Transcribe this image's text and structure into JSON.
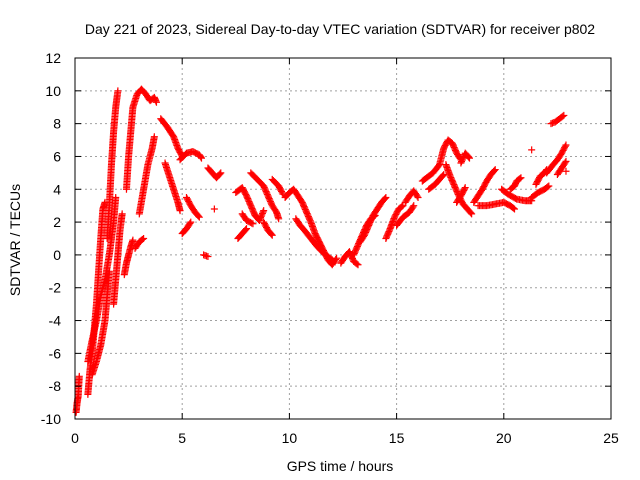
{
  "chart_data": {
    "type": "scatter",
    "title": "Day 221 of 2023, Sidereal Day-to-day VTEC variation (SDTVAR) for receiver p802",
    "xlabel": "GPS time / hours",
    "ylabel": "SDTVAR / TECUs",
    "xlim": [
      0,
      25
    ],
    "ylim": [
      -10,
      12
    ],
    "xticks": [
      0,
      5,
      10,
      15,
      20,
      25
    ],
    "yticks": [
      -10,
      -8,
      -6,
      -4,
      -2,
      0,
      2,
      4,
      6,
      8,
      10,
      12
    ],
    "xtick_labels": [
      "0",
      "5",
      "10",
      "15",
      "20",
      "25"
    ],
    "ytick_labels": [
      "-10",
      "-8",
      "-6",
      "-4",
      "-2",
      "0",
      "2",
      "4",
      "6",
      "8",
      "10",
      "12"
    ],
    "grid": true,
    "marker": "+",
    "color": "#ff0000",
    "series": [
      {
        "name": "SDTVAR",
        "tracks": [
          [
            [
              0.05,
              -9.6
            ],
            [
              0.1,
              -9.0
            ],
            [
              0.15,
              -8.6
            ],
            [
              0.2,
              -7.4
            ]
          ],
          [
            [
              0.6,
              -8.5
            ],
            [
              0.7,
              -7.0
            ],
            [
              0.8,
              -6.0
            ],
            [
              0.9,
              -4.5
            ],
            [
              1.0,
              -3.0
            ],
            [
              1.1,
              -1.0
            ],
            [
              1.2,
              1.0
            ],
            [
              1.3,
              2.8
            ],
            [
              1.4,
              3.2
            ]
          ],
          [
            [
              0.6,
              -6.5
            ],
            [
              0.8,
              -5.2
            ],
            [
              1.0,
              -4.0
            ],
            [
              1.2,
              -2.5
            ],
            [
              1.4,
              -1.5
            ],
            [
              1.6,
              0.0
            ],
            [
              1.8,
              2.0
            ],
            [
              1.9,
              3.5
            ]
          ],
          [
            [
              0.8,
              -7.3
            ],
            [
              1.0,
              -6.5
            ],
            [
              1.2,
              -5.5
            ],
            [
              1.4,
              -4.0
            ],
            [
              1.5,
              -2.5
            ],
            [
              1.6,
              -1.0
            ]
          ],
          [
            [
              1.5,
              1.0
            ],
            [
              1.6,
              3.0
            ],
            [
              1.7,
              5.5
            ],
            [
              1.8,
              7.5
            ],
            [
              1.9,
              9.0
            ],
            [
              2.0,
              10.0
            ]
          ],
          [
            [
              1.8,
              -3.0
            ],
            [
              1.9,
              -1.5
            ],
            [
              2.0,
              0.0
            ],
            [
              2.1,
              1.5
            ],
            [
              2.2,
              2.5
            ]
          ],
          [
            [
              2.3,
              -1.2
            ],
            [
              2.4,
              -0.5
            ],
            [
              2.5,
              0.0
            ],
            [
              2.6,
              0.5
            ],
            [
              2.7,
              0.9
            ]
          ],
          [
            [
              2.4,
              4.0
            ],
            [
              2.5,
              6.0
            ],
            [
              2.6,
              7.5
            ],
            [
              2.7,
              9.0
            ],
            [
              2.9,
              9.8
            ],
            [
              3.1,
              10.1
            ],
            [
              3.3,
              9.8
            ],
            [
              3.5,
              9.4
            ],
            [
              3.7,
              9.6
            ],
            [
              3.8,
              9.3
            ]
          ],
          [
            [
              2.8,
              0.4
            ],
            [
              3.0,
              0.8
            ],
            [
              3.2,
              1.0
            ]
          ],
          [
            [
              3.0,
              2.5
            ],
            [
              3.2,
              4.0
            ],
            [
              3.4,
              5.5
            ],
            [
              3.6,
              6.5
            ],
            [
              3.7,
              7.2
            ]
          ],
          [
            [
              4.0,
              8.3
            ],
            [
              4.3,
              7.8
            ],
            [
              4.6,
              7.2
            ],
            [
              4.8,
              6.5
            ],
            [
              5.0,
              6.0
            ]
          ],
          [
            [
              4.2,
              5.6
            ],
            [
              4.4,
              4.8
            ],
            [
              4.6,
              4.0
            ],
            [
              4.8,
              3.2
            ],
            [
              4.9,
              2.7
            ]
          ],
          [
            [
              4.9,
              5.8
            ],
            [
              5.2,
              6.2
            ],
            [
              5.5,
              6.3
            ],
            [
              5.8,
              6.1
            ],
            [
              5.9,
              5.9
            ]
          ],
          [
            [
              5.2,
              3.5
            ],
            [
              5.4,
              3.0
            ],
            [
              5.6,
              2.6
            ],
            [
              5.8,
              2.3
            ]
          ],
          [
            [
              5.0,
              1.3
            ],
            [
              5.2,
              1.6
            ],
            [
              5.4,
              2.0
            ]
          ],
          [
            [
              6.0,
              0.0
            ],
            [
              6.2,
              -0.1
            ]
          ],
          [
            [
              6.5,
              2.8
            ]
          ],
          [
            [
              6.2,
              5.3
            ],
            [
              6.4,
              5.0
            ],
            [
              6.6,
              4.7
            ],
            [
              6.8,
              5.0
            ]
          ],
          [
            [
              7.5,
              3.8
            ],
            [
              7.8,
              4.1
            ],
            [
              8.0,
              3.6
            ],
            [
              8.2,
              3.0
            ],
            [
              8.4,
              2.4
            ],
            [
              8.6,
              2.1
            ],
            [
              8.8,
              2.7
            ]
          ],
          [
            [
              8.2,
              5.0
            ],
            [
              8.5,
              4.6
            ],
            [
              8.8,
              4.2
            ],
            [
              9.0,
              3.6
            ],
            [
              9.2,
              3.0
            ],
            [
              9.4,
              2.6
            ],
            [
              9.5,
              2.2
            ]
          ],
          [
            [
              8.8,
              2.0
            ],
            [
              9.0,
              1.5
            ],
            [
              9.2,
              1.2
            ]
          ],
          [
            [
              7.8,
              2.5
            ],
            [
              8.0,
              2.1
            ],
            [
              8.3,
              1.9
            ]
          ],
          [
            [
              7.6,
              1.0
            ],
            [
              7.8,
              1.3
            ],
            [
              8.0,
              1.6
            ]
          ],
          [
            [
              9.2,
              4.6
            ],
            [
              9.5,
              4.2
            ],
            [
              9.7,
              3.7
            ]
          ],
          [
            [
              9.8,
              3.5
            ],
            [
              10.0,
              3.8
            ],
            [
              10.2,
              4.0
            ],
            [
              10.4,
              3.6
            ],
            [
              10.6,
              3.2
            ],
            [
              10.8,
              2.6
            ],
            [
              11.0,
              2.0
            ],
            [
              11.2,
              1.3
            ],
            [
              11.5,
              0.5
            ],
            [
              11.8,
              -0.3
            ],
            [
              12.0,
              -0.6
            ],
            [
              12.2,
              -0.2
            ]
          ],
          [
            [
              10.3,
              2.2
            ],
            [
              10.5,
              1.8
            ],
            [
              10.7,
              1.5
            ],
            [
              11.0,
              1.0
            ],
            [
              11.3,
              0.5
            ],
            [
              11.6,
              0.1
            ],
            [
              12.0,
              -0.3
            ]
          ],
          [
            [
              12.4,
              -0.5
            ],
            [
              12.6,
              -0.1
            ],
            [
              12.8,
              0.2
            ],
            [
              13.0,
              -0.4
            ],
            [
              13.2,
              -0.6
            ]
          ],
          [
            [
              13.3,
              0.8
            ],
            [
              13.5,
              1.2
            ],
            [
              13.7,
              1.8
            ],
            [
              13.9,
              2.4
            ],
            [
              14.1,
              2.8
            ],
            [
              14.3,
              3.2
            ],
            [
              14.5,
              3.5
            ]
          ],
          [
            [
              13.0,
              0.0
            ],
            [
              13.2,
              0.6
            ],
            [
              13.4,
              1.2
            ],
            [
              13.6,
              1.8
            ],
            [
              13.8,
              2.2
            ],
            [
              14.0,
              2.4
            ]
          ],
          [
            [
              14.5,
              1.0
            ],
            [
              14.7,
              1.6
            ],
            [
              14.9,
              2.3
            ],
            [
              15.1,
              2.8
            ],
            [
              15.3,
              3.0
            ]
          ],
          [
            [
              15.0,
              1.8
            ],
            [
              15.3,
              2.3
            ],
            [
              15.6,
              2.6
            ],
            [
              15.8,
              3.0
            ]
          ],
          [
            [
              15.4,
              3.2
            ],
            [
              15.6,
              3.6
            ],
            [
              15.8,
              3.9
            ],
            [
              16.0,
              3.5
            ]
          ],
          [
            [
              16.2,
              4.5
            ],
            [
              16.5,
              4.8
            ],
            [
              16.7,
              5.0
            ],
            [
              17.0,
              5.5
            ],
            [
              17.2,
              6.5
            ],
            [
              17.4,
              7.0
            ],
            [
              17.6,
              6.8
            ],
            [
              17.8,
              6.2
            ],
            [
              18.0,
              5.8
            ]
          ],
          [
            [
              16.5,
              4.0
            ],
            [
              16.8,
              4.3
            ],
            [
              17.0,
              4.6
            ],
            [
              17.2,
              4.9
            ]
          ],
          [
            [
              17.3,
              5.5
            ],
            [
              17.5,
              4.8
            ],
            [
              17.7,
              4.2
            ],
            [
              17.9,
              3.6
            ],
            [
              18.1,
              3.1
            ],
            [
              18.3,
              2.8
            ],
            [
              18.5,
              2.5
            ]
          ],
          [
            [
              18.0,
              5.6
            ],
            [
              18.2,
              6.2
            ],
            [
              18.4,
              5.9
            ]
          ],
          [
            [
              17.8,
              3.2
            ],
            [
              18.0,
              3.6
            ],
            [
              18.2,
              4.1
            ]
          ],
          [
            [
              18.6,
              3.2
            ],
            [
              18.8,
              3.6
            ],
            [
              19.0,
              4.0
            ],
            [
              19.2,
              4.5
            ],
            [
              19.4,
              4.9
            ],
            [
              19.6,
              5.2
            ]
          ],
          [
            [
              18.8,
              3.0
            ],
            [
              19.2,
              3.0
            ],
            [
              19.6,
              3.1
            ],
            [
              20.0,
              3.2
            ],
            [
              20.3,
              3.0
            ],
            [
              20.5,
              2.8
            ]
          ],
          [
            [
              19.9,
              4.0
            ],
            [
              20.2,
              3.7
            ],
            [
              20.6,
              3.4
            ],
            [
              21.0,
              3.3
            ],
            [
              21.3,
              3.3
            ]
          ],
          [
            [
              20.3,
              4.0
            ],
            [
              20.5,
              4.2
            ],
            [
              20.6,
              4.5
            ],
            [
              20.8,
              4.7
            ]
          ],
          [
            [
              21.3,
              6.4
            ]
          ],
          [
            [
              21.3,
              3.5
            ],
            [
              21.6,
              3.8
            ],
            [
              21.9,
              4.0
            ],
            [
              22.1,
              4.2
            ]
          ],
          [
            [
              21.5,
              4.3
            ],
            [
              21.7,
              4.8
            ],
            [
              21.9,
              5.0
            ],
            [
              22.0,
              5.2
            ]
          ],
          [
            [
              22.0,
              5.0
            ],
            [
              22.3,
              5.5
            ],
            [
              22.5,
              5.8
            ],
            [
              22.7,
              6.2
            ],
            [
              22.9,
              6.7
            ]
          ],
          [
            [
              22.2,
              8.0
            ],
            [
              22.4,
              8.1
            ],
            [
              22.6,
              8.3
            ],
            [
              22.8,
              8.5
            ]
          ],
          [
            [
              22.5,
              4.9
            ],
            [
              22.7,
              5.3
            ],
            [
              22.9,
              5.7
            ]
          ],
          [
            [
              22.9,
              5.1
            ]
          ]
        ]
      }
    ]
  }
}
